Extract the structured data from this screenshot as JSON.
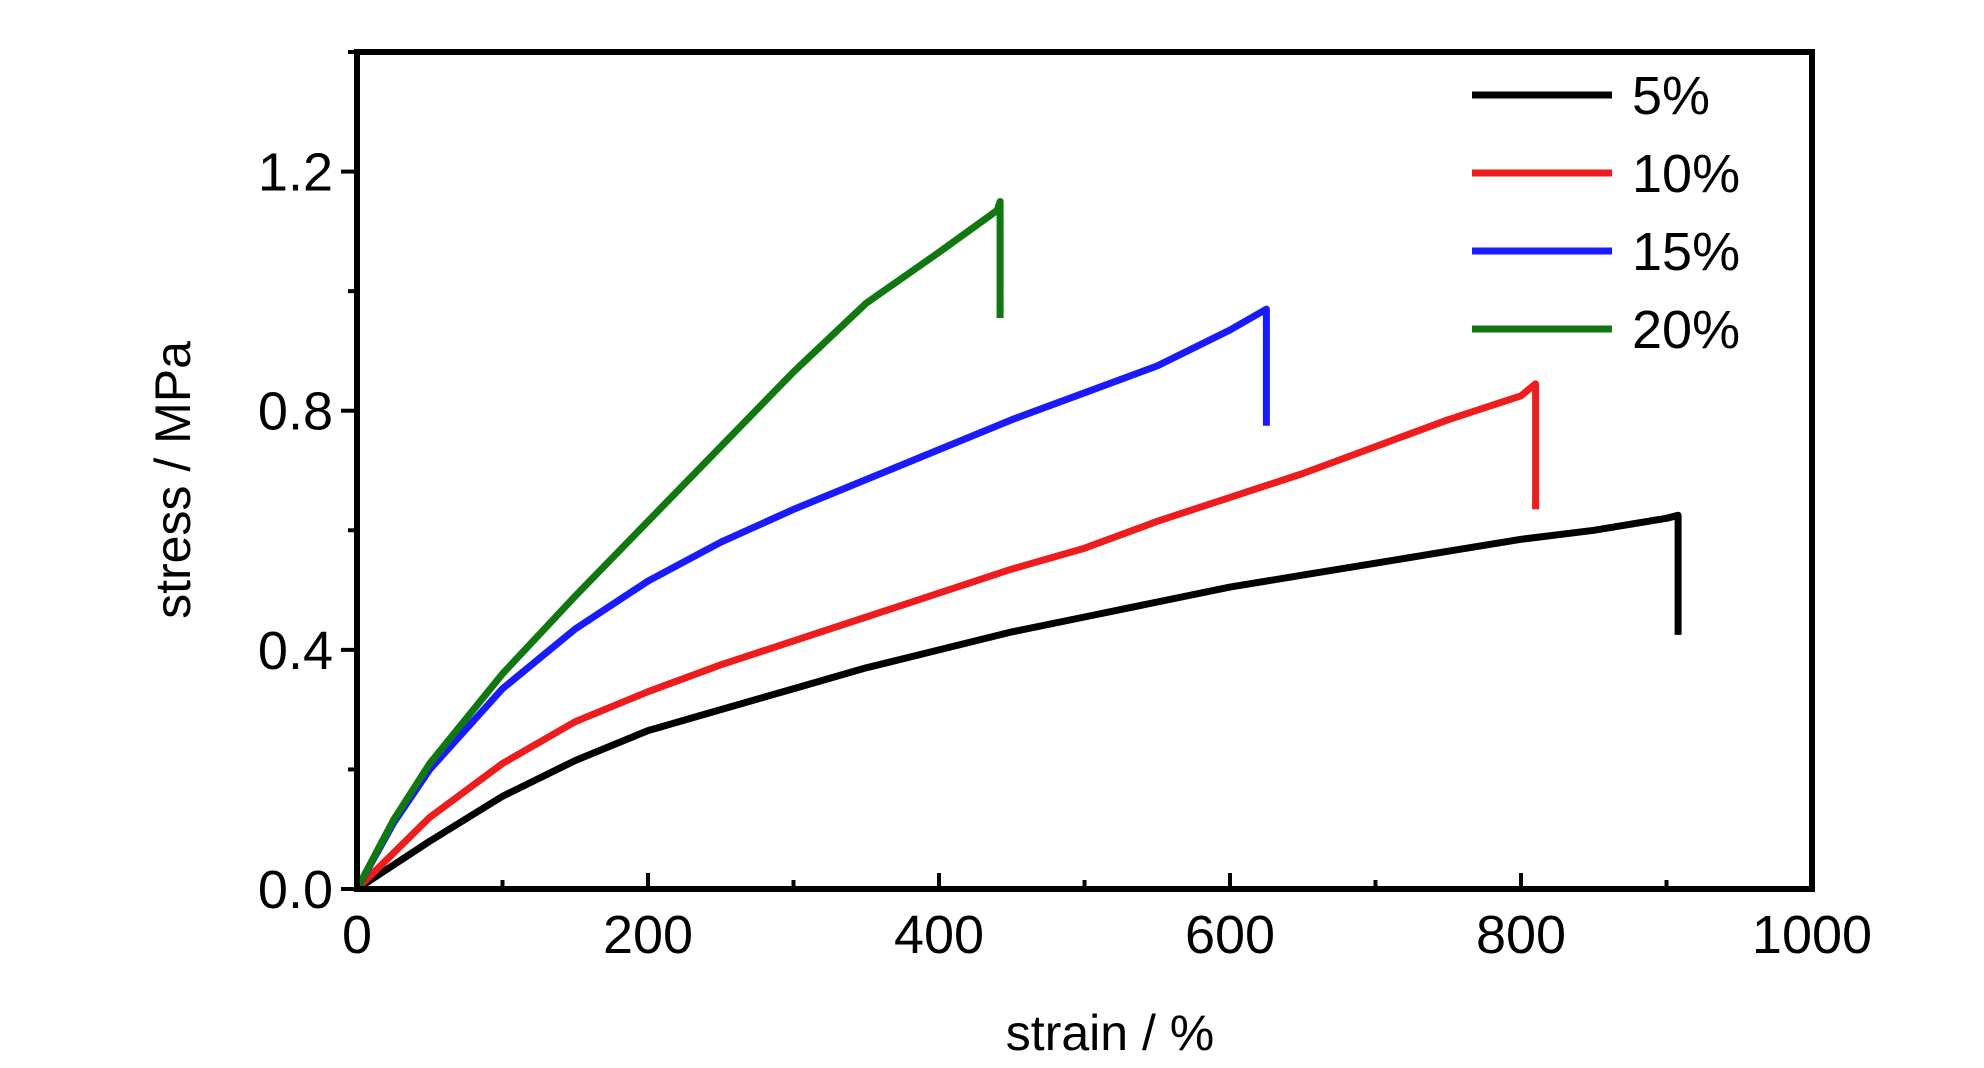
{
  "chart_data": {
    "type": "line",
    "xlabel": "strain / %",
    "ylabel": "stress / MPa",
    "xlim": [
      0,
      1000
    ],
    "ylim": [
      0,
      1.4
    ],
    "x_ticks": [
      0,
      200,
      400,
      600,
      800,
      1000
    ],
    "x_tick_labels": [
      "0",
      "200",
      "400",
      "600",
      "800",
      "1000"
    ],
    "y_ticks": [
      0,
      0.4,
      0.8,
      1.2
    ],
    "y_tick_labels": [
      "0.0",
      "0.4",
      "0.8",
      "1.2"
    ],
    "grid": false,
    "legend_position": "top-right",
    "series": [
      {
        "name": "5%",
        "color": "#000000",
        "x": [
          0,
          25,
          50,
          100,
          150,
          200,
          250,
          300,
          350,
          400,
          450,
          500,
          550,
          600,
          650,
          700,
          750,
          800,
          850,
          900,
          908,
          908
        ],
        "y": [
          0,
          0.04,
          0.08,
          0.155,
          0.215,
          0.265,
          0.3,
          0.335,
          0.37,
          0.4,
          0.43,
          0.455,
          0.48,
          0.505,
          0.525,
          0.545,
          0.565,
          0.585,
          0.6,
          0.62,
          0.625,
          0.425
        ]
      },
      {
        "name": "10%",
        "color": "#ee1c1c",
        "x": [
          0,
          25,
          50,
          100,
          150,
          200,
          250,
          300,
          350,
          400,
          450,
          500,
          550,
          600,
          650,
          700,
          750,
          800,
          810,
          810
        ],
        "y": [
          0,
          0.06,
          0.12,
          0.21,
          0.28,
          0.33,
          0.375,
          0.415,
          0.455,
          0.495,
          0.535,
          0.57,
          0.615,
          0.655,
          0.695,
          0.74,
          0.785,
          0.825,
          0.845,
          0.635
        ]
      },
      {
        "name": "15%",
        "color": "#1a1aff",
        "x": [
          0,
          25,
          50,
          100,
          150,
          200,
          250,
          300,
          350,
          400,
          450,
          500,
          550,
          600,
          625,
          625
        ],
        "y": [
          0,
          0.11,
          0.2,
          0.335,
          0.435,
          0.515,
          0.58,
          0.635,
          0.685,
          0.735,
          0.785,
          0.83,
          0.875,
          0.935,
          0.97,
          0.775
        ]
      },
      {
        "name": "20%",
        "color": "#117711",
        "x": [
          0,
          25,
          50,
          100,
          150,
          200,
          250,
          300,
          350,
          400,
          440,
          442,
          442
        ],
        "y": [
          0,
          0.115,
          0.21,
          0.36,
          0.49,
          0.615,
          0.74,
          0.865,
          0.98,
          1.065,
          1.135,
          1.15,
          0.955
        ]
      }
    ]
  }
}
